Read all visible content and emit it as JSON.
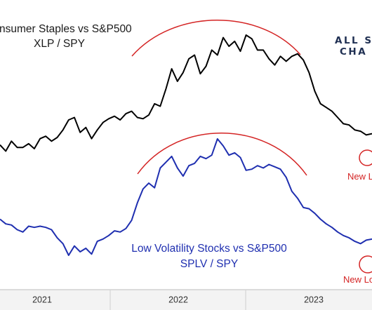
{
  "colors": {
    "xlp_line": "#000000",
    "splv_line": "#1f2fb0",
    "highlight": "#d42424",
    "brand": "#1f2f52",
    "axis_bg": "#f3f3f3"
  },
  "titles": {
    "xlp_title": "nsumer Staples vs S&P500",
    "xlp_subtitle": "XLP / SPY",
    "splv_title": "Low Volatility Stocks vs S&P500",
    "splv_subtitle": "SPLV / SPY"
  },
  "brand": {
    "line1": "ALL S",
    "line2": "CHA"
  },
  "annotations": {
    "xlp_new_low": "New L",
    "splv_new_low": "New Lo"
  },
  "chart_data": {
    "type": "line",
    "x_axis_labels": [
      "2021",
      "2022",
      "2023"
    ],
    "x_range": [
      "2020-07",
      "2023-10"
    ],
    "grid": false,
    "legend": "none",
    "series": [
      {
        "name": "XLP / SPY",
        "values": [
          12,
          7,
          15,
          10,
          10,
          13,
          9,
          17,
          19,
          15,
          18,
          24,
          32,
          34,
          22,
          26,
          17,
          24,
          30,
          33,
          35,
          32,
          37,
          39,
          34,
          33,
          36,
          45,
          43,
          57,
          73,
          63,
          70,
          81,
          84,
          69,
          75,
          88,
          84,
          98,
          91,
          95,
          87,
          100,
          97,
          88,
          88,
          81,
          76,
          83,
          79,
          83,
          85,
          80,
          70,
          55,
          45,
          42,
          39,
          34,
          29,
          28,
          24,
          23,
          20,
          21
        ]
      },
      {
        "name": "SPLV / SPY",
        "values": [
          31,
          27,
          26,
          22,
          20,
          25,
          24,
          25,
          24,
          22,
          15,
          10,
          0,
          8,
          3,
          6,
          1,
          12,
          14,
          17,
          21,
          20,
          23,
          30,
          45,
          57,
          62,
          58,
          75,
          80,
          85,
          75,
          68,
          77,
          79,
          85,
          83,
          86,
          100,
          94,
          86,
          88,
          84,
          73,
          74,
          77,
          75,
          78,
          76,
          74,
          67,
          55,
          49,
          41,
          40,
          36,
          31,
          27,
          24,
          20,
          17,
          15,
          12,
          10,
          13,
          14
        ]
      }
    ]
  }
}
